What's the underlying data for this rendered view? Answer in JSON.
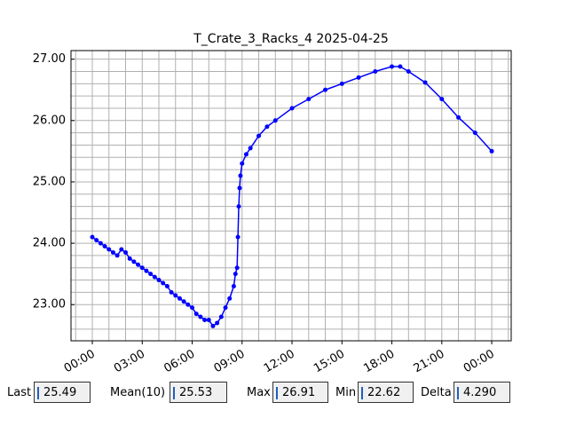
{
  "chart_data": {
    "type": "line",
    "title": "T_Crate_3_Racks_4 2025-04-25",
    "color": "#0000ff",
    "x": [
      0,
      0.25,
      0.5,
      0.75,
      1,
      1.25,
      1.5,
      1.75,
      2,
      2.25,
      2.5,
      2.75,
      3,
      3.25,
      3.5,
      3.75,
      4,
      4.25,
      4.5,
      4.75,
      5,
      5.25,
      5.5,
      5.75,
      6,
      6.25,
      6.5,
      6.75,
      7,
      7.25,
      7.5,
      7.75,
      8,
      8.25,
      8.5,
      8.6,
      8.7,
      8.75,
      8.8,
      8.85,
      8.9,
      9,
      9.25,
      9.5,
      10,
      10.5,
      11,
      12,
      13,
      14,
      15,
      16,
      17,
      18,
      18.5,
      19,
      20,
      21,
      22,
      23,
      24
    ],
    "values": [
      24.1,
      24.05,
      24.0,
      23.95,
      23.9,
      23.85,
      23.8,
      23.9,
      23.85,
      23.75,
      23.7,
      23.65,
      23.6,
      23.55,
      23.5,
      23.45,
      23.4,
      23.35,
      23.3,
      23.2,
      23.15,
      23.1,
      23.05,
      23.0,
      22.95,
      22.85,
      22.8,
      22.75,
      22.75,
      22.65,
      22.7,
      22.8,
      22.95,
      23.1,
      23.3,
      23.5,
      23.6,
      24.1,
      24.6,
      24.9,
      25.1,
      25.3,
      25.45,
      25.55,
      25.75,
      25.9,
      26.0,
      26.2,
      26.35,
      26.5,
      26.6,
      26.7,
      26.8,
      26.88,
      26.88,
      26.8,
      26.62,
      26.35,
      26.05,
      25.8,
      25.5
    ],
    "xlim": [
      -1.28,
      25.17
    ],
    "ylim": [
      22.41,
      27.14
    ],
    "xticks": [
      {
        "value": 0,
        "label": "00:00"
      },
      {
        "value": 3,
        "label": "03:00"
      },
      {
        "value": 6,
        "label": "06:00"
      },
      {
        "value": 9,
        "label": "09:00"
      },
      {
        "value": 12,
        "label": "12:00"
      },
      {
        "value": 15,
        "label": "15:00"
      },
      {
        "value": 18,
        "label": "18:00"
      },
      {
        "value": 21,
        "label": "21:00"
      },
      {
        "value": 24,
        "label": "00:00"
      }
    ],
    "yticks": [
      {
        "value": 23,
        "label": "23.00"
      },
      {
        "value": 24,
        "label": "24.00"
      },
      {
        "value": 25,
        "label": "25.00"
      },
      {
        "value": 26,
        "label": "26.00"
      },
      {
        "value": 27,
        "label": "27.00"
      }
    ],
    "grid": true,
    "grid_step_x": 1,
    "grid_step_y": 0.2
  },
  "status": [
    {
      "label": "Last",
      "value": "25.49"
    },
    {
      "label": "Mean(10)",
      "value": "25.53"
    },
    {
      "label": "Max",
      "value": "26.91"
    },
    {
      "label": "Min",
      "value": "22.62"
    },
    {
      "label": "Delta",
      "value": "4.290"
    }
  ]
}
